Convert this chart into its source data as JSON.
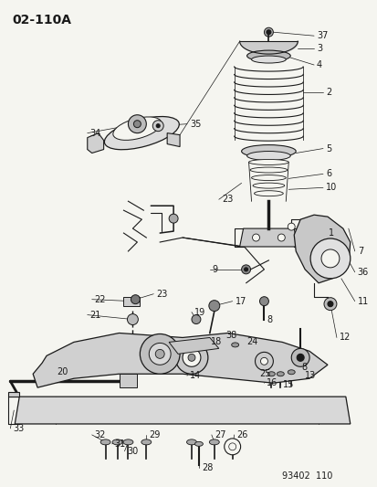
{
  "title": "02-110A",
  "figure_number": "93402 110",
  "bg_color": "#f5f5f0",
  "line_color": "#1a1a1a",
  "text_color": "#1a1a1a",
  "title_fontsize": 10,
  "label_fontsize": 7,
  "fig_width": 4.14,
  "fig_height": 5.33,
  "dpi": 100
}
